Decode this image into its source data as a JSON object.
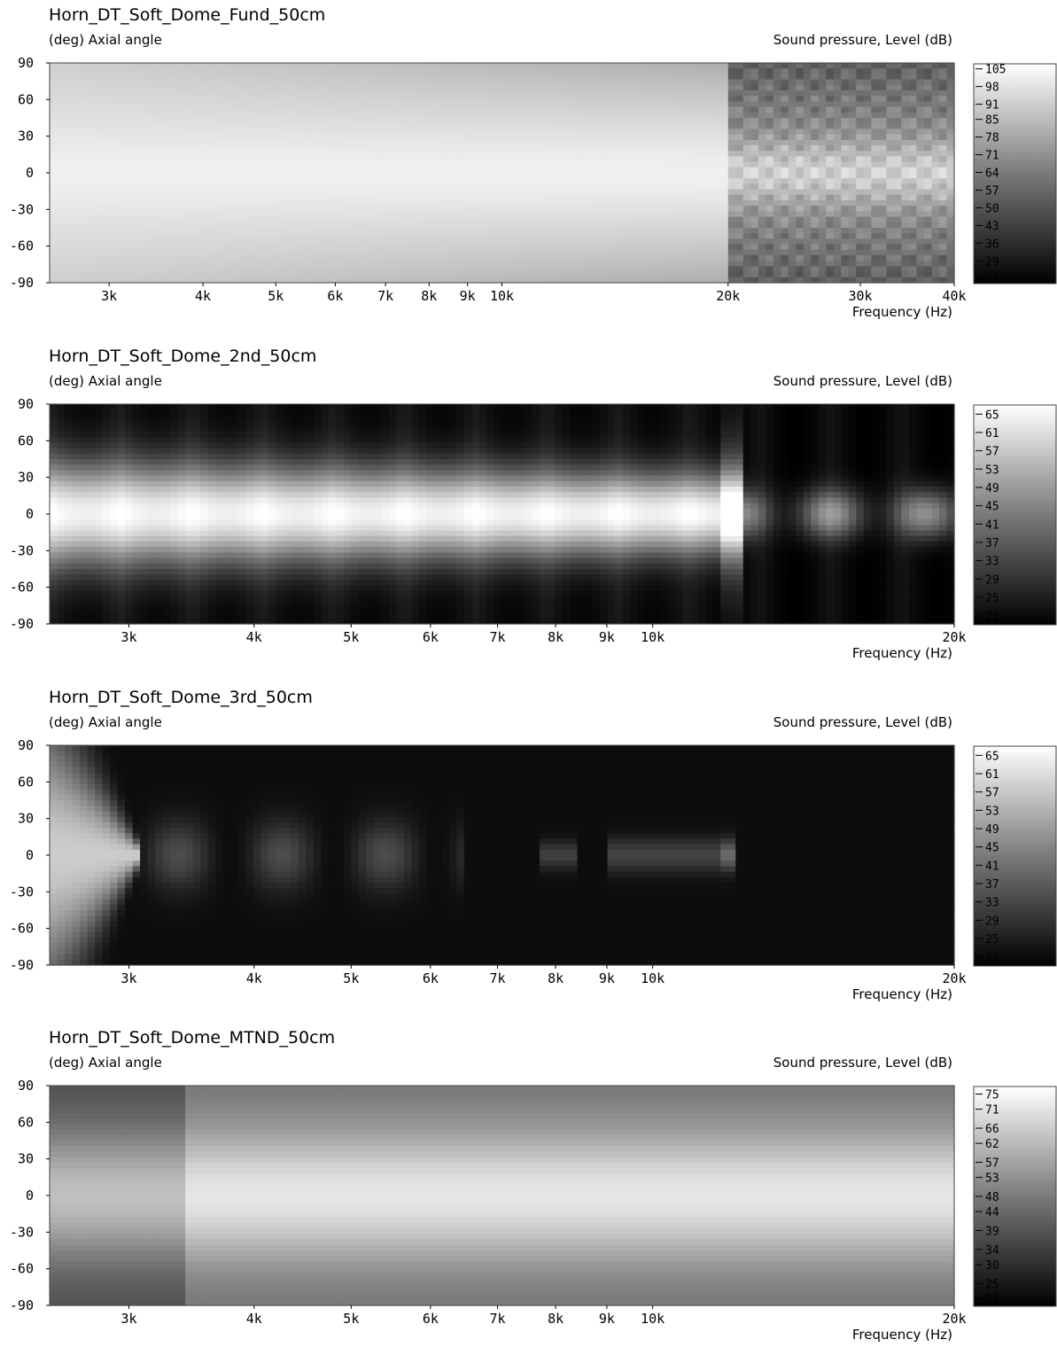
{
  "charts": [
    {
      "title": "Horn_DT_Soft_Dome_Fund_50cm",
      "y_unit": "(deg)  Axial angle",
      "z_unit": "Sound pressure, Level  (dB)",
      "x_unit": "Frequency  (Hz)"
    },
    {
      "title": "Horn_DT_Soft_Dome_2nd_50cm",
      "y_unit": "(deg)  Axial angle",
      "z_unit": "Sound pressure, Level  (dB)",
      "x_unit": "Frequency  (Hz)"
    },
    {
      "title": "Horn_DT_Soft_Dome_3rd_50cm",
      "y_unit": "(deg)  Axial angle",
      "z_unit": "Sound pressure, Level  (dB)",
      "x_unit": "Frequency  (Hz)"
    },
    {
      "title": "Horn_DT_Soft_Dome_MTND_50cm",
      "y_unit": "(deg)  Axial angle",
      "z_unit": "Sound pressure, Level  (dB)",
      "x_unit": "Frequency  (Hz)"
    }
  ],
  "chart_data": [
    {
      "type": "heatmap",
      "title": "Horn_DT_Soft_Dome_Fund_50cm",
      "xlabel": "Frequency  (Hz)",
      "ylabel": "(deg)  Axial angle",
      "zlabel": "Sound pressure, Level  (dB)",
      "x_scale": "log",
      "xlim": [
        2500,
        40000
      ],
      "ylim": [
        -90,
        90
      ],
      "x_ticks": [
        {
          "value": 3000,
          "label": "3k"
        },
        {
          "value": 4000,
          "label": "4k"
        },
        {
          "value": 5000,
          "label": "5k"
        },
        {
          "value": 6000,
          "label": "6k"
        },
        {
          "value": 7000,
          "label": "7k"
        },
        {
          "value": 8000,
          "label": "8k"
        },
        {
          "value": 9000,
          "label": "9k"
        },
        {
          "value": 10000,
          "label": "10k"
        },
        {
          "value": 20000,
          "label": "20k"
        },
        {
          "value": 30000,
          "label": "30k"
        },
        {
          "value": 40000,
          "label": "40k"
        }
      ],
      "y_ticks": [
        "90",
        "60",
        "30",
        "0",
        "-30",
        "-60",
        "-90"
      ],
      "colorbar_ticks": [
        "105",
        "98",
        "91",
        "85",
        "78",
        "71",
        "64",
        "57",
        "50",
        "43",
        "36",
        "29",
        "22"
      ],
      "colorbar_range": [
        20,
        107
      ],
      "grid": true,
      "colormap": "grayscale"
    },
    {
      "type": "heatmap",
      "title": "Horn_DT_Soft_Dome_2nd_50cm",
      "xlabel": "Frequency  (Hz)",
      "ylabel": "(deg)  Axial angle",
      "zlabel": "Sound pressure, Level  (dB)",
      "x_scale": "log",
      "xlim": [
        2500,
        20000
      ],
      "ylim": [
        -90,
        90
      ],
      "x_ticks": [
        {
          "value": 3000,
          "label": "3k"
        },
        {
          "value": 4000,
          "label": "4k"
        },
        {
          "value": 5000,
          "label": "5k"
        },
        {
          "value": 6000,
          "label": "6k"
        },
        {
          "value": 7000,
          "label": "7k"
        },
        {
          "value": 8000,
          "label": "8k"
        },
        {
          "value": 9000,
          "label": "9k"
        },
        {
          "value": 10000,
          "label": "10k"
        },
        {
          "value": 20000,
          "label": "20k"
        }
      ],
      "y_ticks": [
        "90",
        "60",
        "30",
        "0",
        "-30",
        "-60",
        "-90"
      ],
      "colorbar_ticks": [
        "65",
        "61",
        "57",
        "53",
        "49",
        "45",
        "41",
        "37",
        "33",
        "29",
        "25",
        "21"
      ],
      "colorbar_range": [
        19,
        67
      ],
      "grid": true,
      "colormap": "grayscale"
    },
    {
      "type": "heatmap",
      "title": "Horn_DT_Soft_Dome_3rd_50cm",
      "xlabel": "Frequency  (Hz)",
      "ylabel": "(deg)  Axial angle",
      "zlabel": "Sound pressure, Level  (dB)",
      "x_scale": "log",
      "xlim": [
        2500,
        20000
      ],
      "ylim": [
        -90,
        90
      ],
      "x_ticks": [
        {
          "value": 3000,
          "label": "3k"
        },
        {
          "value": 4000,
          "label": "4k"
        },
        {
          "value": 5000,
          "label": "5k"
        },
        {
          "value": 6000,
          "label": "6k"
        },
        {
          "value": 7000,
          "label": "7k"
        },
        {
          "value": 8000,
          "label": "8k"
        },
        {
          "value": 9000,
          "label": "9k"
        },
        {
          "value": 10000,
          "label": "10k"
        },
        {
          "value": 20000,
          "label": "20k"
        }
      ],
      "y_ticks": [
        "90",
        "60",
        "30",
        "0",
        "-30",
        "-60",
        "-90"
      ],
      "colorbar_ticks": [
        "65",
        "61",
        "57",
        "53",
        "49",
        "45",
        "41",
        "37",
        "33",
        "29",
        "25",
        "21"
      ],
      "colorbar_range": [
        19,
        67
      ],
      "grid": true,
      "colormap": "grayscale"
    },
    {
      "type": "heatmap",
      "title": "Horn_DT_Soft_Dome_MTND_50cm",
      "xlabel": "Frequency  (Hz)",
      "ylabel": "(deg)  Axial angle",
      "zlabel": "Sound pressure, Level  (dB)",
      "x_scale": "log",
      "xlim": [
        2500,
        20000
      ],
      "ylim": [
        -90,
        90
      ],
      "x_ticks": [
        {
          "value": 3000,
          "label": "3k"
        },
        {
          "value": 4000,
          "label": "4k"
        },
        {
          "value": 5000,
          "label": "5k"
        },
        {
          "value": 6000,
          "label": "6k"
        },
        {
          "value": 7000,
          "label": "7k"
        },
        {
          "value": 8000,
          "label": "8k"
        },
        {
          "value": 9000,
          "label": "9k"
        },
        {
          "value": 10000,
          "label": "10k"
        },
        {
          "value": 20000,
          "label": "20k"
        }
      ],
      "y_ticks": [
        "90",
        "60",
        "30",
        "0",
        "-30",
        "-60",
        "-90"
      ],
      "colorbar_ticks": [
        "75",
        "71",
        "66",
        "62",
        "57",
        "53",
        "48",
        "44",
        "39",
        "34",
        "30",
        "25",
        "21"
      ],
      "colorbar_range": [
        19,
        77
      ],
      "grid": true,
      "colormap": "grayscale"
    }
  ]
}
